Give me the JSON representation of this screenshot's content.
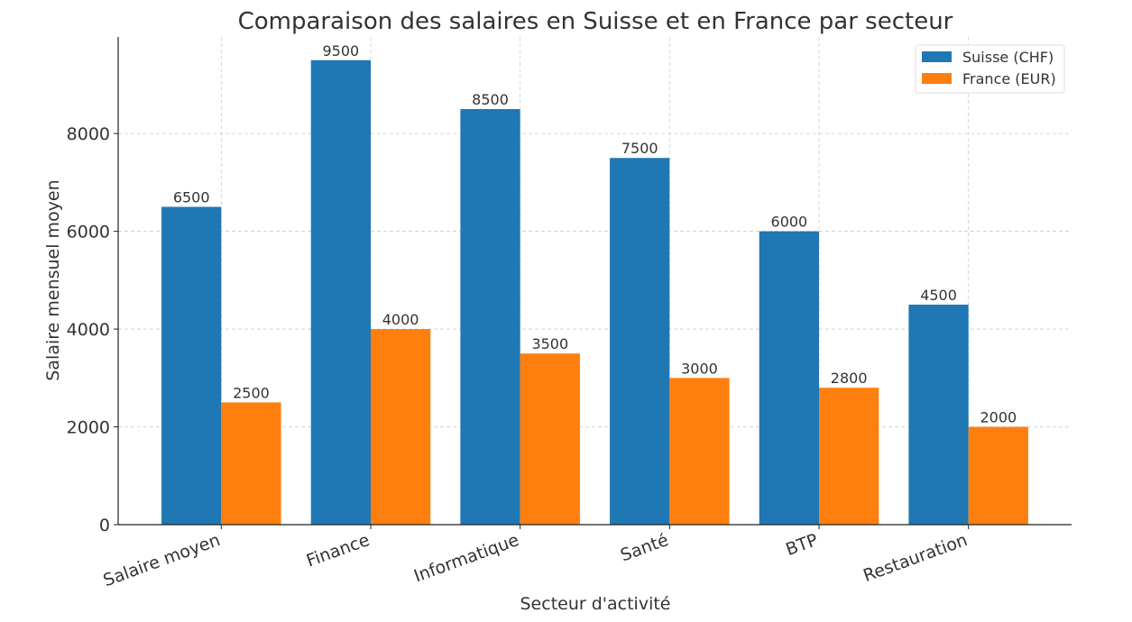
{
  "chart_data": {
    "type": "bar",
    "title": "Comparaison des salaires en Suisse et en France par secteur",
    "xlabel": "Secteur d'activité",
    "ylabel": "Salaire mensuel moyen",
    "categories": [
      "Salaire moyen",
      "Finance",
      "Informatique",
      "Santé",
      "BTP",
      "Restauration"
    ],
    "series": [
      {
        "name": "Suisse (CHF)",
        "color": "#1f77b4",
        "values": [
          6500,
          9500,
          8500,
          7500,
          6000,
          4500
        ]
      },
      {
        "name": "France (EUR)",
        "color": "#ff7f0e",
        "values": [
          2500,
          4000,
          3500,
          3000,
          2800,
          2000
        ]
      }
    ],
    "ylim": [
      0,
      9975
    ],
    "yticks": [
      0,
      2000,
      4000,
      6000,
      8000
    ],
    "grid": true,
    "legend_position": "top-right"
  }
}
